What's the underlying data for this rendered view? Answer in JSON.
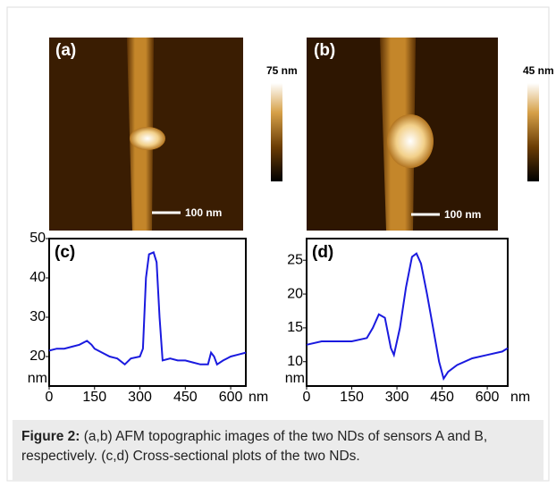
{
  "figure": {
    "panels": [
      {
        "label": "(a)",
        "colorbar_label": "75 nm",
        "scale_bar": "100 nm"
      },
      {
        "label": "(b)",
        "colorbar_label": "45 nm",
        "scale_bar": "100 nm"
      }
    ]
  },
  "chart_data": [
    {
      "type": "line",
      "title": "(c)",
      "xlabel": "nm",
      "ylabel": "nm",
      "color": "#1a1adf",
      "x": [
        0,
        25,
        50,
        75,
        100,
        125,
        140,
        150,
        175,
        200,
        225,
        250,
        270,
        300,
        310,
        320,
        330,
        345,
        355,
        365,
        375,
        400,
        425,
        450,
        475,
        500,
        525,
        535,
        545,
        555,
        575,
        600,
        625,
        650
      ],
      "values": [
        21.5,
        22,
        22,
        22.5,
        23,
        24,
        23,
        22,
        21,
        20,
        19.5,
        18,
        19.5,
        20,
        22,
        40,
        46,
        46.5,
        44,
        30,
        19,
        19.5,
        19,
        19,
        18.5,
        18,
        18,
        21,
        20,
        18,
        19,
        20,
        20.5,
        21
      ],
      "xlim": [
        0,
        650
      ],
      "ylim": [
        12.5,
        50
      ],
      "xticks": [
        0,
        150,
        300,
        450,
        600
      ],
      "yticks": [
        20,
        30,
        40,
        50
      ]
    },
    {
      "type": "line",
      "title": "(d)",
      "xlabel": "nm",
      "ylabel": "nm",
      "color": "#1a1adf",
      "x": [
        0,
        50,
        100,
        150,
        200,
        220,
        240,
        260,
        280,
        290,
        310,
        330,
        350,
        365,
        380,
        400,
        420,
        440,
        455,
        470,
        500,
        550,
        600,
        650,
        668
      ],
      "values": [
        12.5,
        13,
        13,
        13,
        13.5,
        15,
        17,
        16.5,
        12,
        11,
        15,
        21,
        25.5,
        26,
        24.5,
        20,
        15,
        10,
        7.5,
        8.5,
        9.5,
        10.5,
        11,
        11.5,
        12
      ],
      "xlim": [
        0,
        668
      ],
      "ylim": [
        6.4,
        28.2
      ],
      "xticks": [
        0,
        150,
        300,
        450,
        600
      ],
      "yticks": [
        10,
        15,
        20,
        25
      ]
    }
  ],
  "caption": {
    "label": "Figure 2:",
    "text": " (a,b) AFM topographic images of the two NDs of sensors A and B, respectively. (c,d) Cross-sectional plots of the two NDs."
  }
}
